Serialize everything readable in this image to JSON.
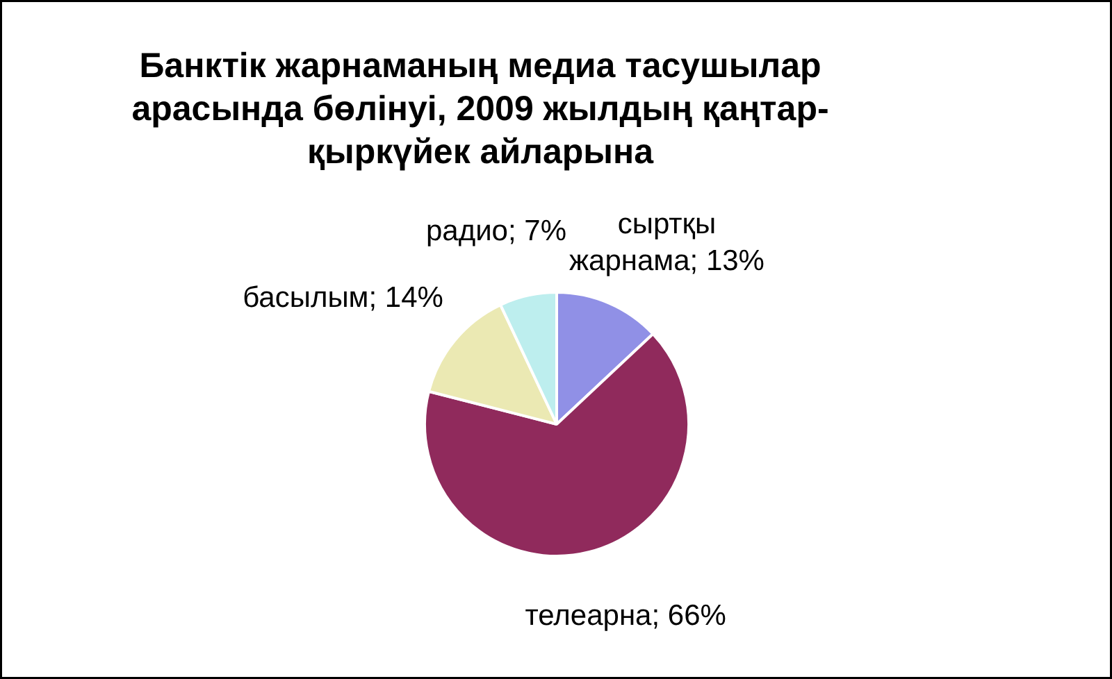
{
  "chart_data": {
    "type": "pie",
    "title": "Банктік жарнаманың медиа тасушылар арасында бөлінуі, 2009 жылдың қаңтар-қыркүйек айларына",
    "categories": [
      "сыртқы жарнама",
      "телеарна",
      "басылым",
      "радио"
    ],
    "values": [
      13,
      66,
      14,
      7
    ],
    "colors": [
      "#9090e6",
      "#902a5c",
      "#ebe9b3",
      "#bdeeee"
    ],
    "value_labels": [
      "13%",
      "66%",
      "14%",
      "7%"
    ]
  }
}
